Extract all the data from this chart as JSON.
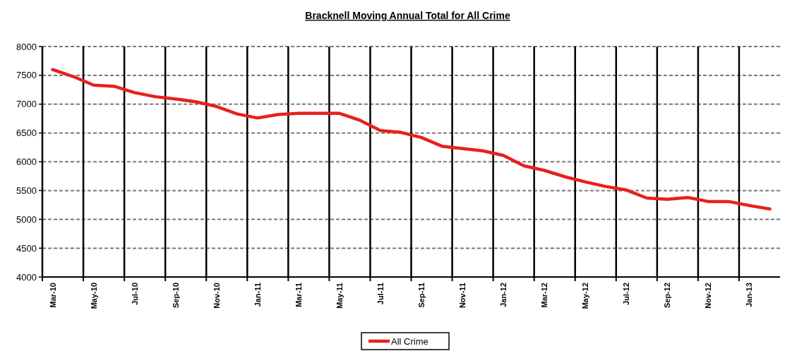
{
  "chart_data": {
    "type": "line",
    "title": "Bracknell Moving Annual Total for All Crime",
    "categories": [
      "Mar-10",
      null,
      "May-10",
      null,
      "Jul-10",
      null,
      "Sep-10",
      null,
      "Nov-10",
      null,
      "Jan-11",
      null,
      "Mar-11",
      null,
      "May-11",
      null,
      "Jul-11",
      null,
      "Sep-11",
      null,
      "Nov-11",
      null,
      "Jan-12",
      null,
      "Mar-12",
      null,
      "May-12",
      null,
      "Jul-12",
      null,
      "Sep-12",
      null,
      "Nov-12",
      null,
      "Jan-13",
      null
    ],
    "series": [
      {
        "name": "All Crime",
        "color": "#e8201e",
        "values": [
          7600,
          7480,
          7330,
          7310,
          7200,
          7130,
          7090,
          7040,
          6960,
          6830,
          6760,
          6820,
          6840,
          6840,
          6840,
          6720,
          6540,
          6510,
          6420,
          6270,
          6230,
          6190,
          6110,
          5930,
          5850,
          5740,
          5650,
          5570,
          5510,
          5370,
          5350,
          5380,
          5310,
          5310,
          5240,
          5180
        ]
      }
    ],
    "ylim": [
      4000,
      8000
    ],
    "yticks": [
      4000,
      4500,
      5000,
      5500,
      6000,
      6500,
      7000,
      7500,
      8000
    ],
    "grid": true,
    "legend": "bottom",
    "marker": "none",
    "line_style": "solid"
  }
}
